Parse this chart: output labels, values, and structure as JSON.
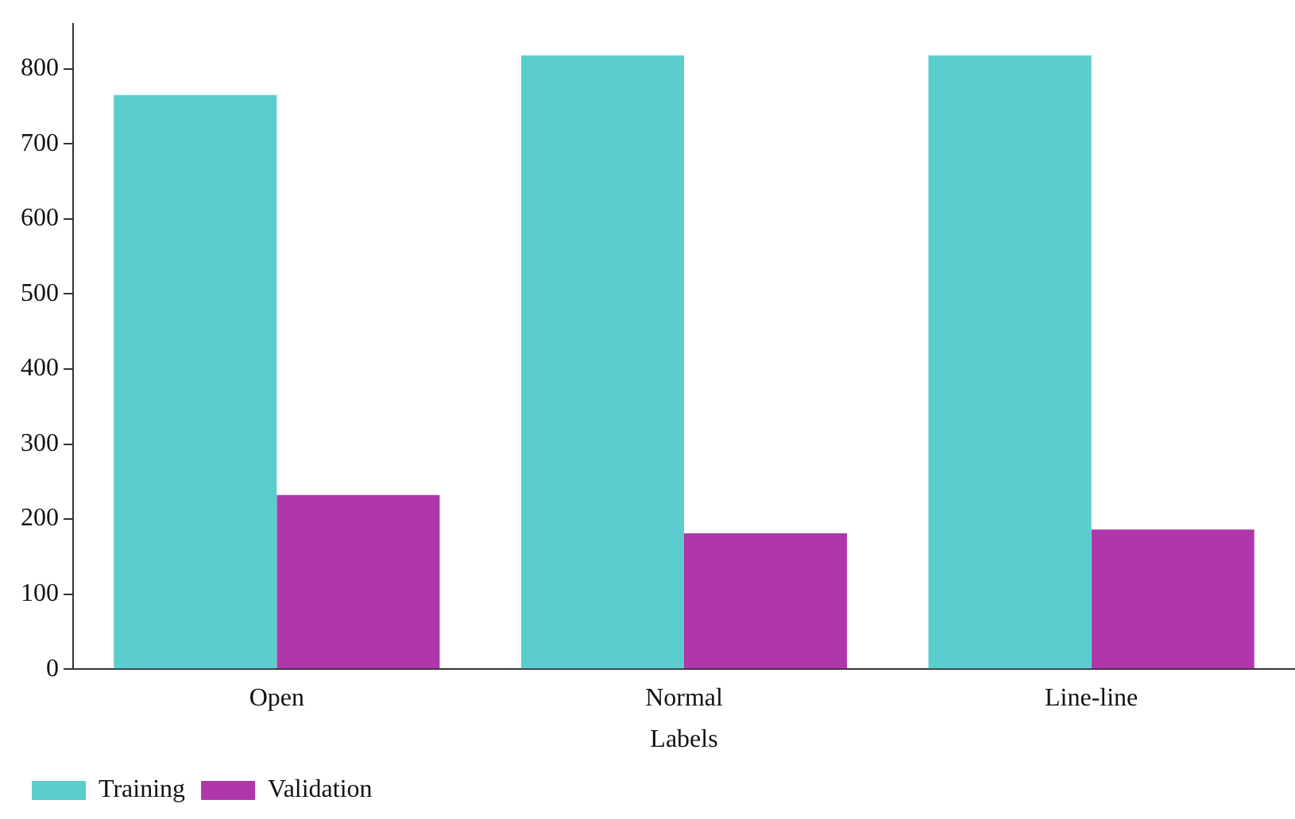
{
  "chart_data": {
    "type": "bar",
    "xlabel": "Labels",
    "categories": [
      "Open",
      "Normal",
      "Line-line"
    ],
    "series": [
      {
        "name": "Training",
        "color": "#5bcdcf",
        "values": [
          765,
          818,
          818
        ]
      },
      {
        "name": "Validation",
        "color": "#b037ab",
        "values": [
          232,
          181,
          186
        ]
      }
    ],
    "ylim": [
      0,
      860
    ],
    "yticks": [
      0,
      100,
      200,
      300,
      400,
      500,
      600,
      700,
      800
    ],
    "grid": false,
    "legend": "bottom left"
  }
}
